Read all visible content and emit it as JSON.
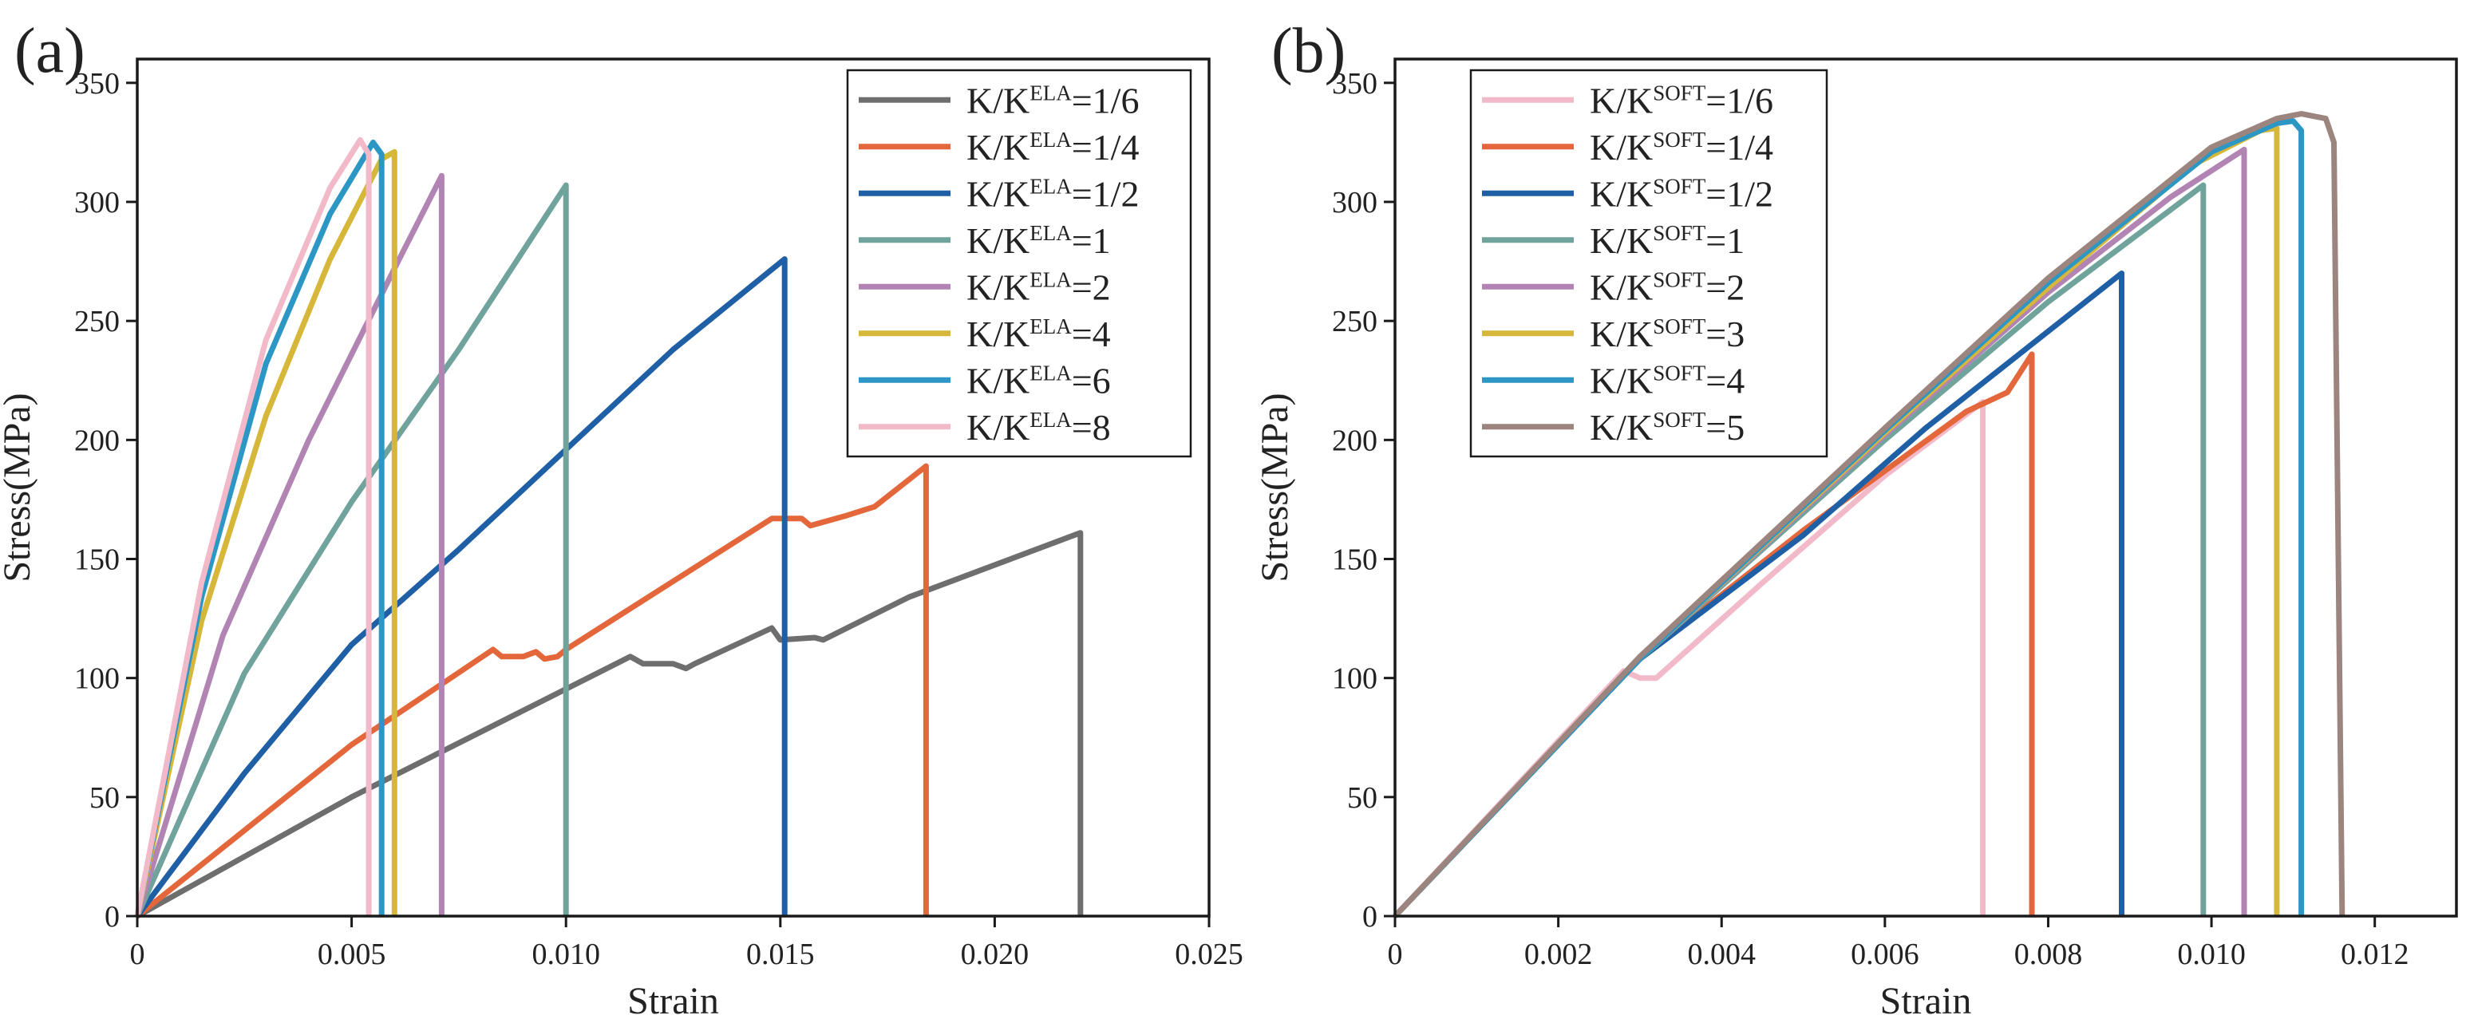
{
  "colors": {
    "axis": "#1a1a1a",
    "gray": "#6e6e6e",
    "orange": "#e4673b",
    "blue": "#1f5fa5",
    "teal": "#6fa39b",
    "purple": "#b184b4",
    "yellow": "#d6b73a",
    "cyan": "#2c97c4",
    "pink": "#f2b9c8",
    "brown": "#9b857e"
  },
  "chart_data": [
    {
      "type": "line",
      "panel_label": "(a)",
      "xlabel": "Strain",
      "ylabel": "Stress(MPa)",
      "xlim": [
        0,
        0.025
      ],
      "ylim": [
        0,
        360
      ],
      "xticks": [
        0,
        0.005,
        0.01,
        0.015,
        0.02,
        0.025
      ],
      "xtick_labels": [
        "0",
        "0.005",
        "0.010",
        "0.015",
        "0.020",
        "0.025"
      ],
      "yticks": [
        0,
        50,
        100,
        150,
        200,
        250,
        300,
        350
      ],
      "ytick_labels": [
        "0",
        "50",
        "100",
        "150",
        "200",
        "250",
        "300",
        "350"
      ],
      "legend_position": "top-right",
      "series": [
        {
          "name": "K/KELA=1/6",
          "legend": {
            "prefix": "K/K",
            "sup": "ELA",
            "suffix": "=1/6"
          },
          "color": "#6e6e6e",
          "points": [
            [
              0,
              0
            ],
            [
              0.005,
              50
            ],
            [
              0.0115,
              109
            ],
            [
              0.0118,
              106
            ],
            [
              0.0125,
              106
            ],
            [
              0.0128,
              104
            ],
            [
              0.013,
              106
            ],
            [
              0.0148,
              121
            ],
            [
              0.015,
              116
            ],
            [
              0.0158,
              117
            ],
            [
              0.016,
              116
            ],
            [
              0.018,
              134
            ],
            [
              0.022,
              161
            ],
            [
              0.022,
              0
            ]
          ]
        },
        {
          "name": "K/KELA=1/4",
          "legend": {
            "prefix": "K/K",
            "sup": "ELA",
            "suffix": "=1/4"
          },
          "color": "#e4673b",
          "points": [
            [
              0,
              0
            ],
            [
              0.005,
              72
            ],
            [
              0.0083,
              112
            ],
            [
              0.0085,
              109
            ],
            [
              0.009,
              109
            ],
            [
              0.0093,
              111
            ],
            [
              0.0095,
              108
            ],
            [
              0.0098,
              109
            ],
            [
              0.01,
              112
            ],
            [
              0.0148,
              167
            ],
            [
              0.0155,
              167
            ],
            [
              0.0157,
              164
            ],
            [
              0.0165,
              168
            ],
            [
              0.0172,
              172
            ],
            [
              0.0184,
              189
            ],
            [
              0.0184,
              0
            ]
          ]
        },
        {
          "name": "K/KELA=1/2",
          "legend": {
            "prefix": "K/K",
            "sup": "ELA",
            "suffix": "=1/2"
          },
          "color": "#1f5fa5",
          "points": [
            [
              0,
              0
            ],
            [
              0.0025,
              60
            ],
            [
              0.005,
              114
            ],
            [
              0.0075,
              154
            ],
            [
              0.01,
              196
            ],
            [
              0.0125,
              238
            ],
            [
              0.0151,
              276
            ],
            [
              0.0151,
              0
            ]
          ]
        },
        {
          "name": "K/KELA=1",
          "legend": {
            "prefix": "K/K",
            "sup": "ELA",
            "suffix": "=1"
          },
          "color": "#6fa39b",
          "points": [
            [
              0,
              0
            ],
            [
              0.0025,
              102
            ],
            [
              0.005,
              174
            ],
            [
              0.0075,
              238
            ],
            [
              0.01,
              307
            ],
            [
              0.01,
              0
            ]
          ]
        },
        {
          "name": "K/KELA=2",
          "legend": {
            "prefix": "K/K",
            "sup": "ELA",
            "suffix": "=2"
          },
          "color": "#b184b4",
          "points": [
            [
              0,
              0
            ],
            [
              0.002,
              118
            ],
            [
              0.004,
              200
            ],
            [
              0.006,
              272
            ],
            [
              0.0071,
              311
            ],
            [
              0.0071,
              0
            ]
          ]
        },
        {
          "name": "K/KELA=4",
          "legend": {
            "prefix": "K/K",
            "sup": "ELA",
            "suffix": "=4"
          },
          "color": "#d6b73a",
          "points": [
            [
              0,
              0
            ],
            [
              0.0015,
              124
            ],
            [
              0.003,
              210
            ],
            [
              0.0045,
              276
            ],
            [
              0.0057,
              318
            ],
            [
              0.006,
              321
            ],
            [
              0.006,
              0
            ]
          ]
        },
        {
          "name": "K/KELA=6",
          "legend": {
            "prefix": "K/K",
            "sup": "ELA",
            "suffix": "=6"
          },
          "color": "#2c97c4",
          "points": [
            [
              0,
              0
            ],
            [
              0.0015,
              134
            ],
            [
              0.003,
              232
            ],
            [
              0.0045,
              295
            ],
            [
              0.0055,
              325
            ],
            [
              0.0057,
              320
            ],
            [
              0.0057,
              0
            ]
          ]
        },
        {
          "name": "K/KELA=8",
          "legend": {
            "prefix": "K/K",
            "sup": "ELA",
            "suffix": "=8"
          },
          "color": "#f2b9c8",
          "points": [
            [
              0,
              0
            ],
            [
              0.0015,
              140
            ],
            [
              0.003,
              242
            ],
            [
              0.0045,
              306
            ],
            [
              0.0052,
              326
            ],
            [
              0.0054,
              320
            ],
            [
              0.0054,
              0
            ]
          ]
        }
      ]
    },
    {
      "type": "line",
      "panel_label": "(b)",
      "xlabel": "Strain",
      "ylabel": "Stress(MPa)",
      "xlim": [
        0,
        0.013
      ],
      "ylim": [
        0,
        360
      ],
      "xticks": [
        0,
        0.002,
        0.004,
        0.006,
        0.008,
        0.01,
        0.012
      ],
      "xtick_labels": [
        "0",
        "0.002",
        "0.004",
        "0.006",
        "0.008",
        "0.010",
        "0.012"
      ],
      "yticks": [
        0,
        50,
        100,
        150,
        200,
        250,
        300,
        350
      ],
      "ytick_labels": [
        "0",
        "50",
        "100",
        "150",
        "200",
        "250",
        "300",
        "350"
      ],
      "legend_position": "top-left",
      "series": [
        {
          "name": "K/KSOFT=1/6",
          "legend": {
            "prefix": "K/K",
            "sup": "SOFT",
            "suffix": "=1/6"
          },
          "color": "#f2b9c8",
          "points": [
            [
              0,
              0
            ],
            [
              0.0028,
              103
            ],
            [
              0.003,
              100
            ],
            [
              0.0032,
              100
            ],
            [
              0.0045,
              140
            ],
            [
              0.006,
              185
            ],
            [
              0.0072,
              216
            ],
            [
              0.0072,
              0
            ]
          ]
        },
        {
          "name": "K/KSOFT=1/4",
          "legend": {
            "prefix": "K/K",
            "sup": "SOFT",
            "suffix": "=1/4"
          },
          "color": "#e4673b",
          "points": [
            [
              0,
              0
            ],
            [
              0.003,
              108
            ],
            [
              0.005,
              162
            ],
            [
              0.007,
              212
            ],
            [
              0.0075,
              220
            ],
            [
              0.0078,
              236
            ],
            [
              0.0078,
              0
            ]
          ]
        },
        {
          "name": "K/KSOFT=1/2",
          "legend": {
            "prefix": "K/K",
            "sup": "SOFT",
            "suffix": "=1/2"
          },
          "color": "#1f5fa5",
          "points": [
            [
              0,
              0
            ],
            [
              0.003,
              108
            ],
            [
              0.005,
              160
            ],
            [
              0.0065,
              205
            ],
            [
              0.0089,
              270
            ],
            [
              0.0089,
              0
            ]
          ]
        },
        {
          "name": "K/KSOFT=1",
          "legend": {
            "prefix": "K/K",
            "sup": "SOFT",
            "suffix": "=1"
          },
          "color": "#6fa39b",
          "points": [
            [
              0,
              0
            ],
            [
              0.003,
              108
            ],
            [
              0.006,
              200
            ],
            [
              0.008,
              258
            ],
            [
              0.0099,
              307
            ],
            [
              0.0099,
              0
            ]
          ]
        },
        {
          "name": "K/KSOFT=2",
          "legend": {
            "prefix": "K/K",
            "sup": "SOFT",
            "suffix": "=2"
          },
          "color": "#b184b4",
          "points": [
            [
              0,
              0
            ],
            [
              0.003,
              108
            ],
            [
              0.006,
              202
            ],
            [
              0.008,
              262
            ],
            [
              0.0095,
              302
            ],
            [
              0.0104,
              322
            ],
            [
              0.0104,
              0
            ]
          ]
        },
        {
          "name": "K/KSOFT=3",
          "legend": {
            "prefix": "K/K",
            "sup": "SOFT",
            "suffix": "=3"
          },
          "color": "#d6b73a",
          "points": [
            [
              0,
              0
            ],
            [
              0.003,
              108
            ],
            [
              0.006,
              203
            ],
            [
              0.008,
              264
            ],
            [
              0.0098,
              316
            ],
            [
              0.0106,
              330
            ],
            [
              0.0108,
              331
            ],
            [
              0.0108,
              0
            ]
          ]
        },
        {
          "name": "K/KSOFT=4",
          "legend": {
            "prefix": "K/K",
            "sup": "SOFT",
            "suffix": "=4"
          },
          "color": "#2c97c4",
          "points": [
            [
              0,
              0
            ],
            [
              0.003,
              108
            ],
            [
              0.006,
              204
            ],
            [
              0.008,
              266
            ],
            [
              0.01,
              321
            ],
            [
              0.0108,
              333
            ],
            [
              0.011,
              334
            ],
            [
              0.0111,
              330
            ],
            [
              0.0111,
              0
            ]
          ]
        },
        {
          "name": "K/KSOFT=5",
          "legend": {
            "prefix": "K/K",
            "sup": "SOFT",
            "suffix": "=5"
          },
          "color": "#9b857e",
          "points": [
            [
              0,
              0
            ],
            [
              0.003,
              109
            ],
            [
              0.006,
              205
            ],
            [
              0.008,
              268
            ],
            [
              0.01,
              323
            ],
            [
              0.0108,
              335
            ],
            [
              0.0111,
              337
            ],
            [
              0.0114,
              335
            ],
            [
              0.0115,
              325
            ],
            [
              0.0116,
              0
            ]
          ]
        }
      ]
    }
  ]
}
